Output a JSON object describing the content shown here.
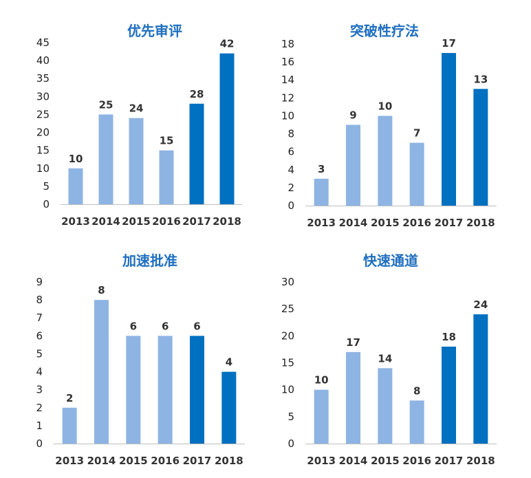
{
  "colors": {
    "light_bar": "#8eb4e3",
    "dark_bar": "#0070c0",
    "title": "#1f6fbf",
    "axis": "#bfbfbf"
  },
  "chart_data": [
    {
      "type": "bar",
      "title": "优先审评",
      "categories": [
        "2013",
        "2014",
        "2015",
        "2016",
        "2017",
        "2018"
      ],
      "values": [
        10,
        25,
        24,
        15,
        28,
        42
      ],
      "highlight": [
        false,
        false,
        false,
        false,
        true,
        true
      ],
      "ylim": [
        0,
        45
      ],
      "yticks": [
        0,
        5,
        10,
        15,
        20,
        25,
        30,
        35,
        40,
        45
      ],
      "grid": false,
      "legend": "none"
    },
    {
      "type": "bar",
      "title": "突破性疗法",
      "categories": [
        "2013",
        "2014",
        "2015",
        "2016",
        "2017",
        "2018"
      ],
      "values": [
        3,
        9,
        10,
        7,
        17,
        13
      ],
      "highlight": [
        false,
        false,
        false,
        false,
        true,
        true
      ],
      "ylim": [
        0,
        18
      ],
      "yticks": [
        0,
        2,
        4,
        6,
        8,
        10,
        12,
        14,
        16,
        18
      ],
      "grid": false,
      "legend": "none"
    },
    {
      "type": "bar",
      "title": "加速批准",
      "categories": [
        "2013",
        "2014",
        "2015",
        "2016",
        "2017",
        "2018"
      ],
      "values": [
        2,
        8,
        6,
        6,
        6,
        4
      ],
      "highlight": [
        false,
        false,
        false,
        false,
        true,
        true
      ],
      "ylim": [
        0,
        9
      ],
      "yticks": [
        0,
        1,
        2,
        3,
        4,
        5,
        6,
        7,
        8,
        9
      ],
      "grid": false,
      "legend": "none"
    },
    {
      "type": "bar",
      "title": "快速通道",
      "categories": [
        "2013",
        "2014",
        "2015",
        "2016",
        "2017",
        "2018"
      ],
      "values": [
        10,
        17,
        14,
        8,
        18,
        24
      ],
      "highlight": [
        false,
        false,
        false,
        false,
        true,
        true
      ],
      "ylim": [
        0,
        30
      ],
      "yticks": [
        0,
        5,
        10,
        15,
        20,
        25,
        30
      ],
      "grid": false,
      "legend": "none"
    }
  ]
}
